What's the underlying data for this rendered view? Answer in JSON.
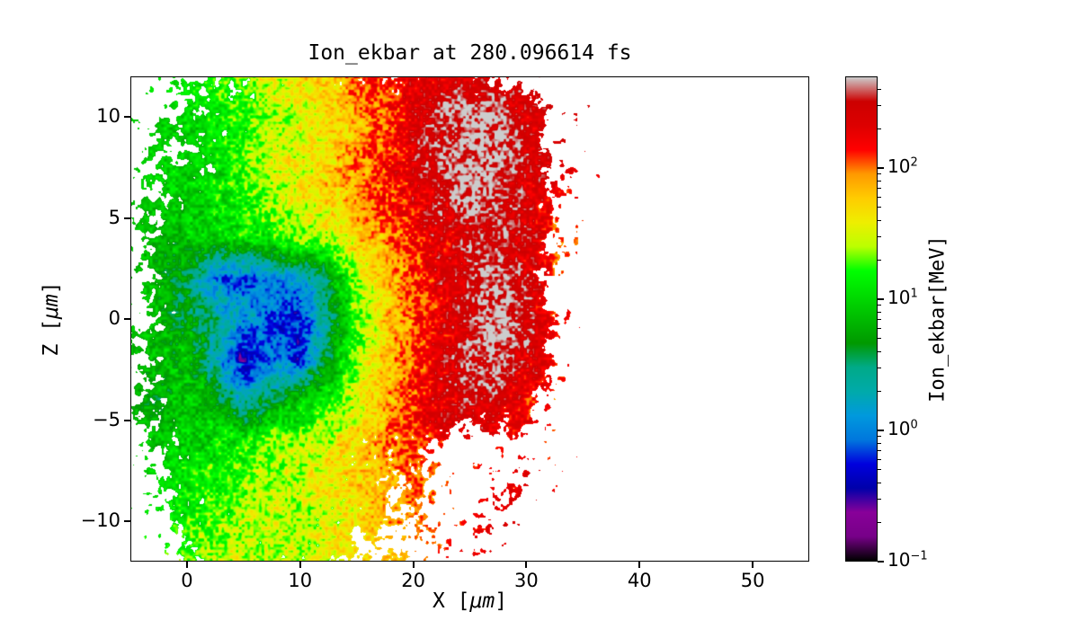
{
  "figure": {
    "background": "#ffffff",
    "axis_color": "#000000"
  },
  "chart_data": {
    "type": "heatmap",
    "title": "Ion_ekbar at 280.096614 fs",
    "xlabel": {
      "prefix": "X [",
      "unit": "μm",
      "suffix": "]"
    },
    "ylabel": {
      "prefix": "Z [",
      "unit": "μm",
      "suffix": "]"
    },
    "xlim": [
      -5,
      55
    ],
    "ylim": [
      -12,
      12
    ],
    "xticks": [
      0,
      10,
      20,
      30,
      40,
      50
    ],
    "xtick_labels": [
      "0",
      "10",
      "20",
      "30",
      "40",
      "50"
    ],
    "yticks": [
      10,
      5,
      0,
      -5,
      -10
    ],
    "ytick_labels": [
      "10",
      "5",
      "0",
      "−5",
      "−10"
    ],
    "grid_on": false,
    "colorbar": {
      "label": "Ion_ekbar[MeV]",
      "scale": "log",
      "vmin": 0.1,
      "vmax": 500,
      "tick_exponents": [
        2,
        1,
        0,
        -1
      ],
      "tick_values": [
        100,
        10,
        1,
        0.1
      ],
      "colormap": "nipy_spectral",
      "stops": [
        [
          0.0,
          "#000000"
        ],
        [
          0.05,
          "#770088"
        ],
        [
          0.1,
          "#880099"
        ],
        [
          0.15,
          "#0000aa"
        ],
        [
          0.2,
          "#0000dd"
        ],
        [
          0.25,
          "#0077dd"
        ],
        [
          0.3,
          "#0099dd"
        ],
        [
          0.35,
          "#00aaaa"
        ],
        [
          0.4,
          "#00aa88"
        ],
        [
          0.45,
          "#009900"
        ],
        [
          0.5,
          "#00bb00"
        ],
        [
          0.55,
          "#00dd00"
        ],
        [
          0.6,
          "#00ff00"
        ],
        [
          0.65,
          "#bbff00"
        ],
        [
          0.7,
          "#eeee00"
        ],
        [
          0.75,
          "#ffcc00"
        ],
        [
          0.8,
          "#ff9900"
        ],
        [
          0.85,
          "#ff0000"
        ],
        [
          0.9,
          "#dd0000"
        ],
        [
          0.95,
          "#cc0000"
        ],
        [
          1.0,
          "#cccccc"
        ]
      ]
    },
    "units": "MeV",
    "grid": {
      "comment": "Coarse estimate of the ion mean-kinetic-energy field read off the plot. mev = value in MeV (null = no particles / white). density = 0-9 fill factor of speckle coverage per cell.",
      "x": [
        -5,
        -2.5,
        0,
        2.5,
        5,
        7.5,
        10,
        12.5,
        15,
        17.5,
        20,
        22.5,
        25,
        27.5,
        30,
        32.5,
        35,
        37.5,
        40,
        42.5,
        45,
        47.5,
        50,
        52.5,
        55
      ],
      "z": [
        12,
        10,
        8,
        6,
        4,
        2,
        0,
        -2,
        -4,
        -6,
        -8,
        -10,
        -12
      ],
      "mev": [
        [
          null,
          8,
          10,
          15,
          20,
          30,
          45,
          60,
          120,
          150,
          180,
          200,
          220,
          150,
          100,
          null,
          null,
          null,
          null,
          null,
          null,
          null,
          null,
          null,
          null
        ],
        [
          5,
          6,
          8,
          12,
          15,
          25,
          35,
          45,
          70,
          120,
          220,
          350,
          450,
          400,
          250,
          150,
          120,
          null,
          null,
          null,
          null,
          null,
          null,
          null,
          null
        ],
        [
          5,
          7,
          9,
          12,
          18,
          28,
          38,
          50,
          80,
          130,
          220,
          350,
          500,
          450,
          300,
          150,
          100,
          null,
          null,
          null,
          null,
          null,
          null,
          null,
          null
        ],
        [
          5,
          7,
          9,
          12,
          15,
          25,
          35,
          50,
          80,
          130,
          200,
          300,
          450,
          400,
          250,
          120,
          80,
          null,
          null,
          null,
          null,
          null,
          null,
          null,
          null
        ],
        [
          5,
          6,
          8,
          10,
          12,
          15,
          20,
          30,
          50,
          90,
          150,
          220,
          280,
          300,
          220,
          80,
          60,
          null,
          null,
          null,
          null,
          null,
          null,
          null,
          null
        ],
        [
          5,
          6,
          4,
          0.9,
          0.7,
          1.2,
          1.5,
          4,
          25,
          60,
          130,
          220,
          320,
          500,
          280,
          60,
          null,
          null,
          null,
          null,
          null,
          null,
          null,
          null,
          null
        ],
        [
          5,
          7,
          5,
          3,
          1.5,
          0.8,
          0.5,
          2.5,
          20,
          50,
          110,
          200,
          300,
          500,
          320,
          100,
          null,
          null,
          null,
          null,
          null,
          null,
          null,
          null,
          null
        ],
        [
          4,
          6,
          8,
          2,
          0.3,
          1,
          0.6,
          5,
          25,
          60,
          120,
          220,
          350,
          450,
          250,
          80,
          null,
          null,
          null,
          null,
          null,
          null,
          null,
          null,
          null
        ],
        [
          4,
          5,
          8,
          6,
          2,
          4,
          8,
          15,
          30,
          70,
          130,
          250,
          300,
          250,
          150,
          60,
          null,
          null,
          null,
          null,
          null,
          null,
          null,
          null,
          null
        ],
        [
          5,
          6,
          10,
          12,
          15,
          20,
          25,
          30,
          60,
          90,
          120,
          100,
          80,
          80,
          100,
          60,
          null,
          null,
          null,
          null,
          null,
          null,
          null,
          null,
          null
        ],
        [
          5,
          8,
          12,
          15,
          20,
          25,
          30,
          40,
          50,
          70,
          90,
          60,
          80,
          100,
          150,
          80,
          null,
          null,
          null,
          null,
          null,
          null,
          null,
          null,
          null
        ],
        [
          null,
          8,
          15,
          20,
          25,
          30,
          25,
          35,
          40,
          60,
          70,
          80,
          100,
          150,
          100,
          null,
          null,
          null,
          null,
          null,
          null,
          null,
          null,
          null,
          null
        ],
        [
          null,
          10,
          20,
          25,
          30,
          25,
          30,
          35,
          40,
          50,
          60,
          80,
          120,
          100,
          null,
          null,
          null,
          null,
          null,
          null,
          null,
          null,
          null,
          null,
          null
        ]
      ],
      "density": [
        "0134566655565310000000000",
        "1245677778999972100000000",
        "1356788888999982100000000",
        "2467888889999983100000000",
        "2578999999999983100000000",
        "2589999999999982000000000",
        "2589999999999993000000000",
        "2589999999999982000000000",
        "2579999999999861000000000",
        "1468888876521221000000000",
        "1367888765431221000000000",
        "0257777754322210000000000",
        "0146666643212100000000000"
      ]
    }
  }
}
